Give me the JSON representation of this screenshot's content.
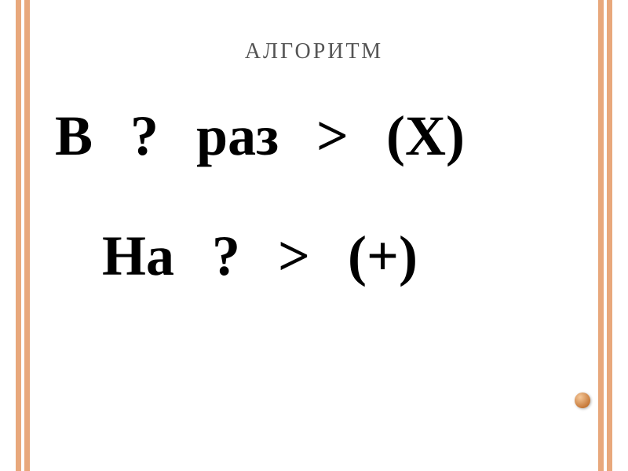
{
  "slide": {
    "title": "АЛГОРИТМ",
    "line1": {
      "t1": "В",
      "t2": "?",
      "t3": "раз",
      "t4": ">",
      "t5": "(Х)"
    },
    "line2": {
      "t1": "На",
      "t2": "?",
      "t3": ">",
      "t4": "(+)"
    },
    "colors": {
      "stripe": "#e8a87c",
      "background": "#ffffff",
      "title_color": "#555555",
      "text_color": "#000000",
      "dot_light": "#f5c89a",
      "dot_mid": "#c77a3a",
      "dot_dark": "#9a5820"
    },
    "typography": {
      "title_fontsize": 28,
      "title_letter_spacing": 3,
      "body_fontsize": 72,
      "font_family": "Georgia, Times New Roman, serif"
    }
  }
}
